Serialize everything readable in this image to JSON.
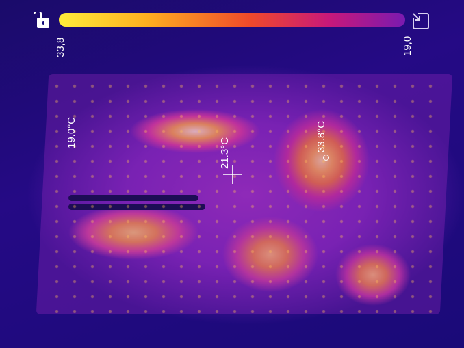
{
  "scale": {
    "max_label": "33,8",
    "min_label": "19,0",
    "colors": [
      "#ffec3a",
      "#ffb020",
      "#f04a2a",
      "#c8187a",
      "#7a1ab0"
    ]
  },
  "icons": {
    "lock": "lock-icon",
    "expand": "expand-icon"
  },
  "spots": {
    "cold": "19.0°C",
    "center": "21.3°C",
    "hot": "33.8°C"
  }
}
